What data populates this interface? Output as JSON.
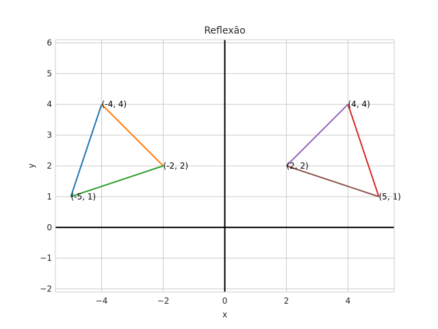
{
  "chart_data": {
    "type": "line",
    "title": "Reflexão",
    "xlabel": "x",
    "ylabel": "y",
    "xlim": [
      -5.5,
      5.5
    ],
    "ylim": [
      -2.1,
      6.1
    ],
    "xticks": [
      -4,
      -2,
      0,
      2,
      4
    ],
    "xtick_labels": [
      "−4",
      "−2",
      "0",
      "2",
      "4"
    ],
    "yticks": [
      -2,
      -1,
      0,
      1,
      2,
      3,
      4,
      5,
      6
    ],
    "ytick_labels": [
      "−2",
      "−1",
      "0",
      "1",
      "2",
      "3",
      "4",
      "5",
      "6"
    ],
    "grid": true,
    "series": [
      {
        "x": [
          -5,
          -4
        ],
        "y": [
          1,
          4
        ],
        "color": "#1f77b4"
      },
      {
        "x": [
          -4,
          -2
        ],
        "y": [
          4,
          2
        ],
        "color": "#ff7f0e"
      },
      {
        "x": [
          -2,
          -5
        ],
        "y": [
          2,
          1
        ],
        "color": "#2ca02c"
      },
      {
        "x": [
          5,
          4
        ],
        "y": [
          1,
          4
        ],
        "color": "#d62728"
      },
      {
        "x": [
          4,
          2
        ],
        "y": [
          4,
          2
        ],
        "color": "#9467bd"
      },
      {
        "x": [
          2,
          5
        ],
        "y": [
          2,
          1
        ],
        "color": "#8c564b"
      }
    ],
    "annotations": [
      {
        "text": "(-5, 1)",
        "x": -5,
        "y": 1
      },
      {
        "text": "(-4, 4)",
        "x": -4,
        "y": 4
      },
      {
        "text": "(-2, 2)",
        "x": -2,
        "y": 2
      },
      {
        "text": "(5, 1)",
        "x": 5,
        "y": 1
      },
      {
        "text": "(4, 4)",
        "x": 4,
        "y": 4
      },
      {
        "text": "(2, 2)",
        "x": 2,
        "y": 2
      }
    ]
  }
}
